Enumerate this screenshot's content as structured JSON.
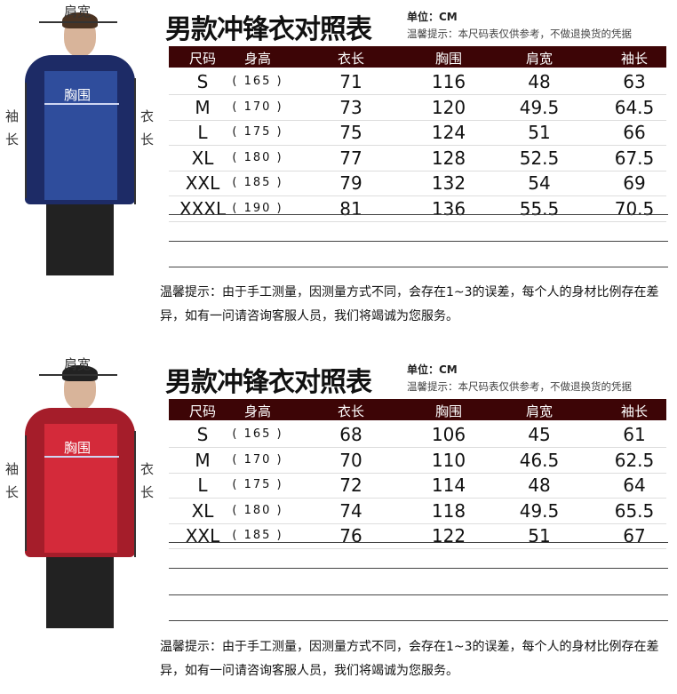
{
  "columns": [
    "尺码",
    "身高",
    "衣长",
    "胸围",
    "肩宽",
    "袖长"
  ],
  "figure_labels": {
    "shoulder": "肩宽",
    "chest": "胸围",
    "sleeve": [
      "袖",
      "长"
    ],
    "length": [
      "衣",
      "长"
    ]
  },
  "sections": [
    {
      "title": "男款冲锋衣对照表",
      "unit": "单位：CM",
      "tip": "温馨提示：本尺码表仅供参考，不做退换货的凭据",
      "jacket_color": "#2f4d9c",
      "jacket_dark": "#1d2b66",
      "rows": [
        [
          "S",
          "( 165 )",
          "71",
          "116",
          "48",
          "63"
        ],
        [
          "M",
          "( 170 )",
          "73",
          "120",
          "49.5",
          "64.5"
        ],
        [
          "L",
          "( 175 )",
          "75",
          "124",
          "51",
          "66"
        ],
        [
          "XL",
          "( 180 )",
          "77",
          "128",
          "52.5",
          "67.5"
        ],
        [
          "XXL",
          "( 185 )",
          "79",
          "132",
          "54",
          "69"
        ],
        [
          "XXXL",
          "( 190 )",
          "81",
          "136",
          "55.5",
          "70.5"
        ]
      ],
      "note": "温馨提示：由于手工测量，因测量方式不同，会存在1~3的误差，每个人的身材比例存在差异，如有一问请咨询客服人员，我们将竭诚为您服务。"
    },
    {
      "title": "男款冲锋衣对照表",
      "unit": "单位：CM",
      "tip": "温馨提示：本尺码表仅供参考，不做退换货的凭据",
      "jacket_color": "#d42a3a",
      "jacket_dark": "#a51d2a",
      "rows": [
        [
          "S",
          "( 165 )",
          "68",
          "106",
          "45",
          "61"
        ],
        [
          "M",
          "( 170 )",
          "70",
          "110",
          "46.5",
          "62.5"
        ],
        [
          "L",
          "( 175 )",
          "72",
          "114",
          "48",
          "64"
        ],
        [
          "XL",
          "( 180 )",
          "74",
          "118",
          "49.5",
          "65.5"
        ],
        [
          "XXL",
          "( 185 )",
          "76",
          "122",
          "51",
          "67"
        ]
      ],
      "note": "温馨提示：由于手工测量，因测量方式不同，会存在1~3的误差，每个人的身材比例存在差异，如有一问请咨询客服人员，我们将竭诚为您服务。"
    }
  ]
}
